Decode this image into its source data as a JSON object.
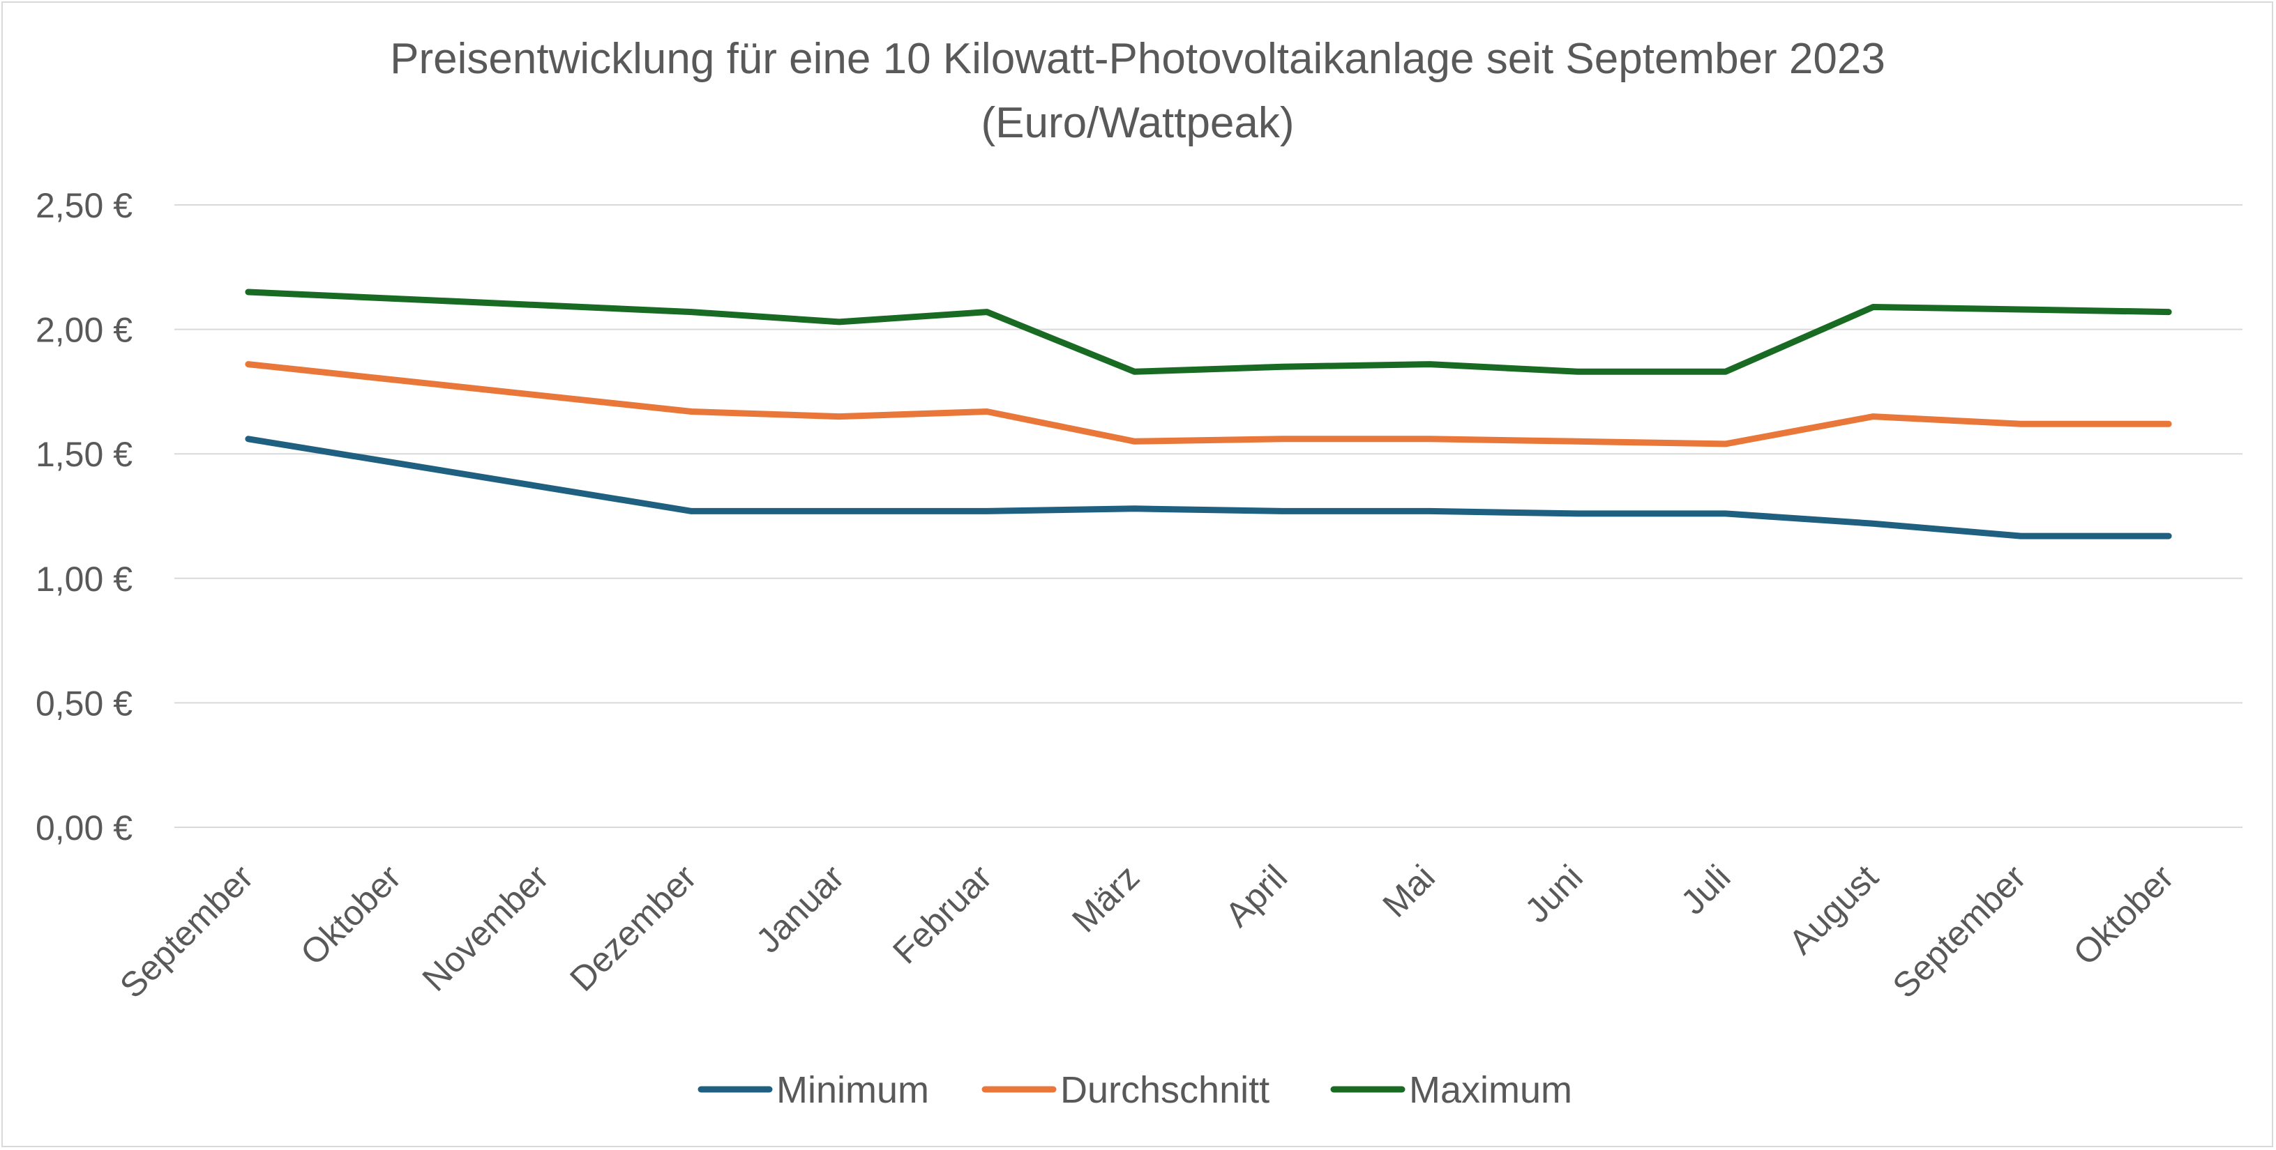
{
  "chart_data": {
    "type": "line",
    "title_line1": "Preisentwicklung für eine 10 Kilowatt-Photovoltaikanlage seit September 2023",
    "title_line2": "(Euro/Wattpeak)",
    "xlabel": "",
    "ylabel": "",
    "categories": [
      "September",
      "Oktober",
      "November",
      "Dezember",
      "Januar",
      "Februar",
      "März",
      "April",
      "Mai",
      "Juni",
      "Juli",
      "August",
      "September",
      "Oktober"
    ],
    "ylim": [
      0,
      2.5
    ],
    "yticks": [
      0,
      0.5,
      1.0,
      1.5,
      2.0,
      2.5
    ],
    "ytick_labels": [
      "0,00 €",
      "0,50 €",
      "1,00 €",
      "1,50 €",
      "2,00 €",
      "2,50 €"
    ],
    "grid": true,
    "legend_position": "bottom",
    "series": [
      {
        "name": "Minimum",
        "color": "#1f6080",
        "values": [
          1.56,
          null,
          null,
          1.27,
          1.27,
          1.27,
          1.28,
          1.27,
          1.27,
          1.26,
          1.26,
          1.22,
          1.17,
          1.17
        ]
      },
      {
        "name": "Durchschnitt",
        "color": "#e9773a",
        "values": [
          1.86,
          null,
          null,
          1.67,
          1.65,
          1.67,
          1.55,
          1.56,
          1.56,
          1.55,
          1.54,
          1.65,
          1.62,
          1.62
        ]
      },
      {
        "name": "Maximum",
        "color": "#196b24",
        "values": [
          2.15,
          null,
          null,
          2.07,
          2.03,
          2.07,
          1.83,
          1.85,
          1.86,
          1.83,
          1.83,
          2.09,
          2.08,
          2.07
        ]
      }
    ]
  }
}
